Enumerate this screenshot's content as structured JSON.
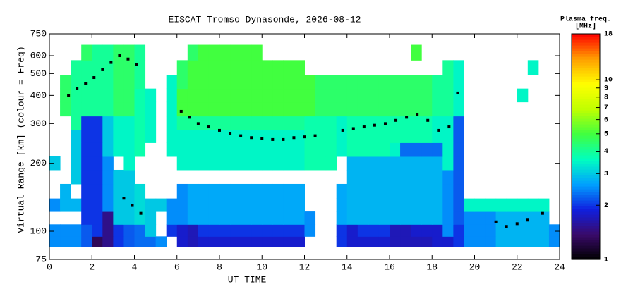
{
  "chart_data": {
    "type": "heatmap",
    "title": "EISCAT Tromso Dynasonde, 2026-08-12",
    "xlabel": "UT TIME",
    "ylabel": "Virtual Range [km] (colour = Freq)",
    "colorbar_label": [
      "Plasma freq.",
      "[MHz]"
    ],
    "log_y": true,
    "log_color": true,
    "xlim": [
      0,
      24
    ],
    "xticks": [
      0,
      2,
      4,
      6,
      8,
      10,
      12,
      14,
      16,
      18,
      20,
      22,
      24
    ],
    "ylim": [
      75,
      750
    ],
    "yticks": [
      75,
      100,
      200,
      300,
      400,
      500,
      600,
      750
    ],
    "clim": [
      1,
      18
    ],
    "cticks": [
      1,
      2,
      3,
      4,
      5,
      6,
      7,
      8,
      9,
      10,
      18
    ],
    "colormap": [
      "#000000",
      "#3a0a6a",
      "#1020e0",
      "#00a0ff",
      "#00ffc0",
      "#40ff40",
      "#c0ff00",
      "#ffff00",
      "#ffa000",
      "#ff0000"
    ],
    "x": [
      0.25,
      0.75,
      1.25,
      1.75,
      2.25,
      2.75,
      3.25,
      3.75,
      4.25,
      4.75,
      5.25,
      5.75,
      6.25,
      6.75,
      7.25,
      7.75,
      8.25,
      8.75,
      9.25,
      9.75,
      10.25,
      10.75,
      11.25,
      11.75,
      12.25,
      12.75,
      13.25,
      13.75,
      14.25,
      14.75,
      15.25,
      15.75,
      16.25,
      16.75,
      17.25,
      17.75,
      18.25,
      18.75,
      19.25,
      19.75,
      20.25,
      20.75,
      21.25,
      21.75,
      22.25,
      22.75,
      23.25,
      23.75
    ],
    "y": [
      90,
      100,
      115,
      130,
      150,
      175,
      200,
      230,
      265,
      300,
      350,
      400,
      460,
      530,
      620
    ],
    "z": [
      [
        2.5,
        2.5,
        2.5,
        2.2,
        1.3,
        1.5,
        2,
        2.2,
        2.3,
        2.3,
        2.5,
        null,
        1.8,
        1.7,
        1.8,
        1.8,
        1.8,
        1.8,
        1.8,
        1.8,
        1.8,
        1.8,
        1.8,
        1.8,
        null,
        null,
        null,
        2,
        1.8,
        1.8,
        1.8,
        1.8,
        1.7,
        1.7,
        1.7,
        1.7,
        1.8,
        1.8,
        2,
        2.5,
        2.5,
        2.5,
        2.8,
        2.8,
        2.8,
        2.8,
        2.8,
        2.5
      ],
      [
        2.5,
        2.5,
        2.5,
        2.2,
        2,
        1.5,
        2,
        2.2,
        2.3,
        3,
        null,
        2,
        1.8,
        1.7,
        2,
        2,
        2,
        2,
        2,
        2,
        2,
        2,
        2,
        2,
        2.5,
        null,
        null,
        2,
        1.8,
        2,
        2,
        2,
        1.7,
        1.7,
        1.8,
        1.8,
        1.8,
        2.5,
        2,
        2.5,
        2.5,
        2.5,
        2.8,
        2.8,
        2.8,
        2.8,
        2.8,
        2.5
      ],
      [
        null,
        null,
        null,
        2,
        2,
        1.5,
        3,
        3,
        3.2,
        3,
        null,
        2.5,
        2.5,
        2.7,
        2.7,
        2.7,
        2.7,
        2.7,
        2.7,
        2.7,
        2.7,
        2.7,
        2.7,
        2.7,
        2.5,
        null,
        null,
        2.7,
        2.8,
        2.8,
        2.8,
        2.8,
        2.8,
        2.8,
        2.8,
        2.8,
        2.8,
        2.5,
        2.2,
        2.5,
        2.5,
        2.5,
        2.8,
        2.8,
        2.8,
        2.8,
        2.8,
        null
      ],
      [
        2.5,
        2.8,
        2.8,
        2,
        2,
        2.5,
        3,
        3,
        3.2,
        3,
        3,
        2.5,
        2.5,
        2.7,
        2.7,
        2.7,
        2.7,
        2.7,
        2.7,
        2.7,
        2.7,
        2.7,
        2.7,
        2.7,
        null,
        null,
        null,
        2.7,
        2.8,
        2.8,
        2.8,
        2.8,
        2.8,
        2.8,
        2.8,
        2.8,
        2.8,
        2.5,
        2.2,
        3.5,
        3.5,
        3.5,
        3.5,
        3.5,
        3.5,
        3.5,
        3.5,
        null
      ],
      [
        null,
        2.8,
        null,
        2,
        2,
        2.5,
        3,
        3,
        3.2,
        null,
        null,
        null,
        2.5,
        2.7,
        2.7,
        2.7,
        2.7,
        2.7,
        2.7,
        2.7,
        2.7,
        2.7,
        2.7,
        2.7,
        null,
        null,
        null,
        2.7,
        2.8,
        2.8,
        2.8,
        2.8,
        2.8,
        2.8,
        2.8,
        2.8,
        2.8,
        2.5,
        2.2,
        null,
        null,
        null,
        null,
        null,
        null,
        null,
        null,
        null
      ],
      [
        null,
        null,
        3,
        2,
        2,
        2.5,
        3,
        3,
        null,
        null,
        null,
        null,
        null,
        null,
        null,
        null,
        null,
        null,
        null,
        null,
        null,
        null,
        null,
        null,
        null,
        null,
        null,
        null,
        2.8,
        2.8,
        2.8,
        2.8,
        2.8,
        2.8,
        2.8,
        2.8,
        2.8,
        2.5,
        2.2,
        null,
        null,
        null,
        null,
        null,
        null,
        null,
        null,
        null
      ],
      [
        3,
        null,
        3,
        2,
        2,
        2.5,
        null,
        3.5,
        null,
        null,
        null,
        null,
        3.5,
        3.5,
        3.5,
        3.5,
        3.5,
        3.5,
        3.5,
        3.5,
        3.5,
        3.5,
        3.5,
        3.5,
        3.8,
        3.8,
        3.8,
        null,
        2.8,
        2.8,
        2.8,
        2.8,
        2.8,
        2.8,
        2.8,
        2.8,
        2.8,
        3.5,
        2.2,
        null,
        null,
        null,
        null,
        null,
        null,
        null,
        null,
        null
      ],
      [
        null,
        null,
        3,
        2,
        2,
        3,
        3.5,
        3.5,
        3.8,
        null,
        null,
        3.5,
        3.5,
        3.5,
        3.5,
        3.5,
        3.5,
        3.5,
        3.5,
        3.5,
        3.5,
        3.5,
        3.5,
        3.5,
        3.8,
        3.8,
        3.8,
        3.5,
        3.8,
        3.8,
        3.8,
        3.8,
        3.5,
        2.3,
        2.3,
        2.3,
        2.3,
        3.5,
        2.2,
        null,
        null,
        null,
        null,
        null,
        null,
        null,
        null,
        null
      ],
      [
        null,
        null,
        3,
        2,
        2,
        3,
        3.5,
        3.5,
        3.8,
        3.5,
        null,
        3.5,
        3.5,
        3.5,
        3.5,
        3.5,
        3.5,
        3.5,
        3.5,
        3.5,
        3.5,
        3.5,
        3.5,
        3.5,
        3.8,
        3.8,
        3.8,
        3.5,
        3.8,
        3.8,
        3.8,
        3.8,
        3.8,
        3.8,
        3.8,
        3.8,
        3.5,
        3.5,
        2.2,
        null,
        null,
        null,
        null,
        null,
        null,
        null,
        null,
        null
      ],
      [
        null,
        null,
        4,
        2,
        2,
        3,
        3.5,
        3.5,
        3.8,
        3.5,
        null,
        3.5,
        4,
        4,
        4,
        4,
        4,
        4,
        4,
        4,
        4,
        4,
        4,
        4,
        3.8,
        3.8,
        3.8,
        3.5,
        3.8,
        3.8,
        3.8,
        3.8,
        3.8,
        3.8,
        3.8,
        3.8,
        3.5,
        3.5,
        2.2,
        null,
        null,
        null,
        null,
        null,
        null,
        null,
        null,
        null
      ],
      [
        null,
        4.5,
        4,
        4,
        4,
        4,
        4.5,
        4.5,
        3.8,
        3.5,
        null,
        3.5,
        5,
        5,
        5,
        5,
        5,
        5,
        5,
        5,
        5,
        5,
        5,
        5,
        5,
        4.5,
        4.5,
        4.5,
        4.5,
        4.5,
        4.5,
        4.5,
        4.5,
        4.5,
        4.5,
        4.5,
        4,
        4,
        3.5,
        null,
        null,
        null,
        null,
        null,
        null,
        null,
        null,
        null
      ],
      [
        null,
        4.5,
        4,
        4,
        4,
        4,
        4.5,
        4.5,
        3.8,
        3.5,
        null,
        3.5,
        5,
        5,
        5,
        5,
        5,
        5,
        5,
        5,
        5,
        5,
        5,
        5,
        5,
        4.5,
        4.5,
        4.5,
        4.5,
        4.5,
        4.5,
        4.5,
        4.5,
        4.5,
        4.5,
        4.5,
        4,
        4,
        3.5,
        null,
        null,
        null,
        null,
        null,
        3.5,
        null,
        null,
        null
      ],
      [
        null,
        4.5,
        4,
        4,
        4,
        4,
        4.5,
        4.5,
        4,
        null,
        null,
        3.5,
        4.5,
        5,
        5,
        5,
        5,
        5,
        5,
        5,
        5,
        5,
        5,
        5,
        5,
        4.5,
        4.5,
        4.5,
        4.5,
        4.5,
        4.5,
        4.5,
        4.5,
        4.5,
        4.5,
        4.5,
        4,
        4,
        3.5,
        null,
        null,
        null,
        null,
        null,
        null,
        null,
        null,
        null
      ],
      [
        null,
        null,
        4,
        4,
        4,
        4,
        4.5,
        4.5,
        4,
        null,
        null,
        null,
        4.5,
        5,
        5,
        5,
        5,
        5,
        5,
        5,
        5,
        5,
        5,
        5,
        null,
        null,
        null,
        null,
        null,
        null,
        null,
        null,
        null,
        null,
        null,
        null,
        null,
        4,
        3.5,
        null,
        null,
        null,
        null,
        null,
        null,
        3.5,
        null,
        null
      ],
      [
        null,
        null,
        null,
        4.5,
        4,
        4,
        4.5,
        4.5,
        4,
        null,
        null,
        null,
        null,
        4.5,
        5,
        5,
        5,
        5,
        5,
        5,
        null,
        null,
        null,
        null,
        null,
        null,
        null,
        null,
        null,
        null,
        null,
        null,
        null,
        null,
        5,
        null,
        null,
        null,
        null,
        null,
        null,
        null,
        null,
        null,
        null,
        null,
        null,
        null
      ]
    ],
    "trace": {
      "color": "#000000",
      "x": [
        0.9,
        1.3,
        1.7,
        2.1,
        2.5,
        2.9,
        3.3,
        3.7,
        4.1,
        3.5,
        3.9,
        4.3,
        6.2,
        6.6,
        7,
        7.5,
        8,
        8.5,
        9,
        9.5,
        10,
        10.5,
        11,
        11.5,
        12,
        12.5,
        13.8,
        14.3,
        14.8,
        15.3,
        15.8,
        16.3,
        16.8,
        17.3,
        17.8,
        18.3,
        18.8,
        19.2,
        21,
        21.5,
        22,
        22.5,
        23.2
      ],
      "y": [
        400,
        430,
        450,
        480,
        520,
        560,
        600,
        580,
        550,
        140,
        130,
        120,
        340,
        320,
        300,
        290,
        280,
        270,
        265,
        260,
        258,
        255,
        255,
        260,
        262,
        265,
        280,
        285,
        290,
        295,
        300,
        310,
        320,
        330,
        310,
        280,
        290,
        410,
        110,
        105,
        108,
        112,
        120
      ]
    }
  }
}
